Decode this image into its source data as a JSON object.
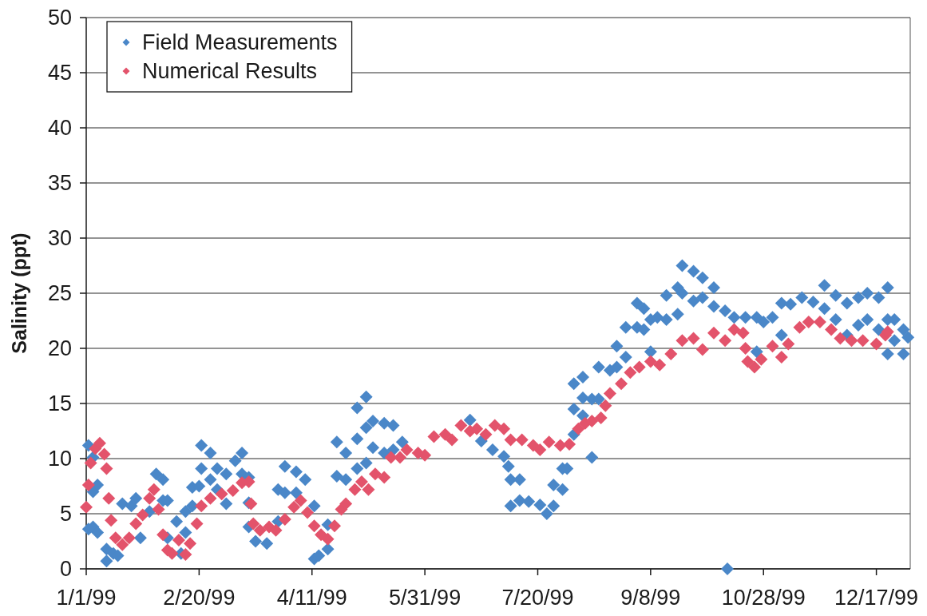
{
  "chart_data": {
    "type": "scatter",
    "ylabel": "Salinity (ppt)",
    "xlim": [
      "1999-01-01",
      "2000-01-01"
    ],
    "xticks": [
      {
        "value": "1999-01-01",
        "label": "1/1/99"
      },
      {
        "value": "1999-02-20",
        "label": "2/20/99"
      },
      {
        "value": "1999-04-11",
        "label": "4/11/99"
      },
      {
        "value": "1999-05-31",
        "label": "5/31/99"
      },
      {
        "value": "1999-07-20",
        "label": "7/20/99"
      },
      {
        "value": "1999-09-08",
        "label": "9/8/99"
      },
      {
        "value": "1999-10-28",
        "label": "10/28/99"
      },
      {
        "value": "1999-12-17",
        "label": "12/17/99"
      }
    ],
    "ylim": [
      0,
      50
    ],
    "yticks": [
      0,
      5,
      10,
      15,
      20,
      25,
      30,
      35,
      40,
      45,
      50
    ],
    "grid": "y",
    "legend": "top left",
    "marker": "diamond",
    "series": [
      {
        "name": "Field Measurements",
        "color": "#4a87c8",
        "x": [
          "1999-01-02",
          "1999-01-02",
          "1999-01-04",
          "1999-01-04",
          "1999-01-04",
          "1999-01-06",
          "1999-01-06",
          "1999-01-10",
          "1999-01-10",
          "1999-01-13",
          "1999-01-15",
          "1999-01-17",
          "1999-01-21",
          "1999-01-23",
          "1999-01-25",
          "1999-01-29",
          "1999-02-01",
          "1999-02-04",
          "1999-02-04",
          "1999-02-06",
          "1999-02-06",
          "1999-02-10",
          "1999-02-12",
          "1999-02-14",
          "1999-02-14",
          "1999-02-17",
          "1999-02-17",
          "1999-02-20",
          "1999-02-21",
          "1999-02-21",
          "1999-02-25",
          "1999-02-25",
          "1999-02-28",
          "1999-02-28",
          "1999-03-04",
          "1999-03-04",
          "1999-03-08",
          "1999-03-11",
          "1999-03-11",
          "1999-03-14",
          "1999-03-14",
          "1999-03-14",
          "1999-03-17",
          "1999-03-22",
          "1999-03-27",
          "1999-03-27",
          "1999-03-30",
          "1999-03-30",
          "1999-04-04",
          "1999-04-04",
          "1999-04-08",
          "1999-04-12",
          "1999-04-12",
          "1999-04-14",
          "1999-04-18",
          "1999-04-18",
          "1999-04-22",
          "1999-04-22",
          "1999-04-26",
          "1999-04-26",
          "1999-05-01",
          "1999-05-01",
          "1999-05-01",
          "1999-05-05",
          "1999-05-05",
          "1999-05-05",
          "1999-05-08",
          "1999-05-08",
          "1999-05-13",
          "1999-05-13",
          "1999-05-17",
          "1999-05-17",
          "1999-05-21",
          "1999-06-20",
          "1999-06-25",
          "1999-06-30",
          "1999-07-05",
          "1999-07-07",
          "1999-07-08",
          "1999-07-08",
          "1999-07-12",
          "1999-07-12",
          "1999-07-16",
          "1999-07-21",
          "1999-07-24",
          "1999-07-27",
          "1999-07-27",
          "1999-07-31",
          "1999-07-31",
          "1999-08-02",
          "1999-08-05",
          "1999-08-05",
          "1999-08-05",
          "1999-08-09",
          "1999-08-09",
          "1999-08-09",
          "1999-08-13",
          "1999-08-13",
          "1999-08-16",
          "1999-08-16",
          "1999-08-21",
          "1999-08-24",
          "1999-08-24",
          "1999-08-28",
          "1999-08-28",
          "1999-09-02",
          "1999-09-02",
          "1999-09-05",
          "1999-09-05",
          "1999-09-08",
          "1999-09-08",
          "1999-09-11",
          "1999-09-15",
          "1999-09-15",
          "1999-09-20",
          "1999-09-20",
          "1999-09-22",
          "1999-09-22",
          "1999-09-27",
          "1999-09-27",
          "1999-10-01",
          "1999-10-01",
          "1999-10-06",
          "1999-10-06",
          "1999-10-11",
          "1999-10-12",
          "1999-10-15",
          "1999-10-20",
          "1999-10-25",
          "1999-10-25",
          "1999-10-28",
          "1999-11-01",
          "1999-11-05",
          "1999-11-05",
          "1999-11-09",
          "1999-11-14",
          "1999-11-19",
          "1999-11-24",
          "1999-11-24",
          "1999-11-29",
          "1999-11-29",
          "1999-12-04",
          "1999-12-04",
          "1999-12-09",
          "1999-12-09",
          "1999-12-13",
          "1999-12-13",
          "1999-12-18",
          "1999-12-18",
          "1999-12-22",
          "1999-12-22",
          "1999-12-22",
          "1999-12-25",
          "1999-12-25",
          "1999-12-29",
          "1999-12-29",
          "1999-12-31"
        ],
        "values": [
          11.2,
          3.6,
          10.1,
          7.0,
          3.8,
          7.6,
          3.3,
          1.8,
          0.7,
          1.4,
          1.2,
          5.9,
          5.7,
          6.4,
          2.8,
          5.2,
          8.6,
          8.1,
          6.2,
          6.2,
          2.8,
          4.3,
          1.4,
          5.2,
          3.3,
          7.4,
          5.7,
          7.5,
          11.2,
          9.1,
          10.5,
          8.1,
          9.1,
          7.2,
          8.6,
          5.9,
          9.8,
          10.5,
          8.6,
          8.3,
          6.0,
          3.8,
          2.5,
          2.3,
          7.2,
          4.3,
          9.3,
          6.9,
          8.8,
          6.9,
          8.1,
          5.7,
          0.9,
          1.2,
          4.0,
          1.8,
          11.5,
          8.4,
          10.5,
          8.1,
          14.6,
          11.8,
          9.1,
          15.6,
          12.8,
          9.6,
          13.4,
          11.0,
          13.2,
          10.5,
          13.0,
          10.8,
          11.5,
          13.5,
          11.6,
          10.8,
          10.2,
          9.3,
          8.1,
          5.7,
          8.1,
          6.2,
          6.1,
          5.8,
          5.0,
          7.6,
          5.7,
          9.1,
          7.2,
          9.1,
          16.8,
          14.5,
          12.2,
          17.4,
          15.5,
          13.9,
          15.4,
          10.1,
          18.3,
          15.4,
          18.0,
          20.2,
          18.3,
          21.9,
          19.2,
          24.1,
          21.9,
          23.6,
          21.7,
          22.6,
          19.7,
          22.8,
          24.8,
          22.6,
          25.5,
          23.1,
          27.5,
          25.0,
          27.0,
          24.3,
          26.4,
          24.6,
          25.5,
          23.8,
          23.4,
          0,
          22.8,
          22.8,
          22.8,
          19.7,
          22.4,
          22.8,
          24.1,
          21.2,
          24.0,
          24.6,
          24.2,
          25.7,
          23.6,
          24.8,
          22.6,
          24.1,
          21.2,
          24.6,
          22.1,
          25.0,
          22.6,
          24.6,
          21.7,
          25.5,
          22.6,
          19.5,
          22.6,
          20.7,
          21.7,
          19.5,
          21.0
        ]
      },
      {
        "name": "Numerical Results",
        "color": "#e3536b",
        "x": [
          "1999-01-01",
          "1999-01-02",
          "1999-01-03",
          "1999-01-05",
          "1999-01-07",
          "1999-01-09",
          "1999-01-10",
          "1999-01-11",
          "1999-01-12",
          "1999-01-14",
          "1999-01-17",
          "1999-01-20",
          "1999-01-23",
          "1999-01-26",
          "1999-01-29",
          "1999-01-31",
          "1999-02-02",
          "1999-02-04",
          "1999-02-06",
          "1999-02-08",
          "1999-02-11",
          "1999-02-14",
          "1999-02-16",
          "1999-02-19",
          "1999-02-21",
          "1999-02-25",
          "1999-03-02",
          "1999-03-07",
          "1999-03-11",
          "1999-03-14",
          "1999-03-15",
          "1999-03-16",
          "1999-03-19",
          "1999-03-23",
          "1999-03-26",
          "1999-03-30",
          "1999-04-03",
          "1999-04-06",
          "1999-04-09",
          "1999-04-12",
          "1999-04-15",
          "1999-04-18",
          "1999-04-21",
          "1999-04-24",
          "1999-04-26",
          "1999-04-30",
          "1999-05-03",
          "1999-05-06",
          "1999-05-09",
          "1999-05-13",
          "1999-05-16",
          "1999-05-20",
          "1999-05-23",
          "1999-05-28",
          "1999-05-31",
          "1999-06-04",
          "1999-06-09",
          "1999-06-12",
          "1999-06-16",
          "1999-06-20",
          "1999-06-23",
          "1999-06-27",
          "1999-07-01",
          "1999-07-05",
          "1999-07-08",
          "1999-07-13",
          "1999-07-18",
          "1999-07-21",
          "1999-07-25",
          "1999-07-30",
          "1999-08-03",
          "1999-08-07",
          "1999-08-10",
          "1999-08-13",
          "1999-08-17",
          "1999-08-19",
          "1999-08-21",
          "1999-08-26",
          "1999-08-30",
          "1999-09-03",
          "1999-09-08",
          "1999-09-12",
          "1999-09-17",
          "1999-09-22",
          "1999-09-27",
          "1999-10-01",
          "1999-10-06",
          "1999-10-11",
          "1999-10-15",
          "1999-10-19",
          "1999-10-20",
          "1999-10-21",
          "1999-10-24",
          "1999-10-27",
          "1999-11-01",
          "1999-11-05",
          "1999-11-08",
          "1999-11-13",
          "1999-11-17",
          "1999-11-22",
          "1999-11-27",
          "1999-12-01",
          "1999-12-06",
          "1999-12-11",
          "1999-12-17",
          "1999-12-21",
          "1999-12-22"
        ],
        "values": [
          5.6,
          7.6,
          9.6,
          10.9,
          11.4,
          10.4,
          9.1,
          6.4,
          4.4,
          2.8,
          2.2,
          2.8,
          4.1,
          4.9,
          6.4,
          7.2,
          5.4,
          3.1,
          1.7,
          1.4,
          2.6,
          1.3,
          2.3,
          4.1,
          5.7,
          6.4,
          6.8,
          7.1,
          7.8,
          7.9,
          5.9,
          4.1,
          3.5,
          3.8,
          3.5,
          4.5,
          5.6,
          6.2,
          5.1,
          3.9,
          3.1,
          2.7,
          3.9,
          5.4,
          5.9,
          7.2,
          7.9,
          7.2,
          8.6,
          8.3,
          10.1,
          10.1,
          10.8,
          10.5,
          10.3,
          12.0,
          12.2,
          11.7,
          13.0,
          12.5,
          12.7,
          12.2,
          13.0,
          12.7,
          11.7,
          11.7,
          11.2,
          10.8,
          11.5,
          11.2,
          11.3,
          12.7,
          13.2,
          13.4,
          13.7,
          14.8,
          15.9,
          16.8,
          17.8,
          18.3,
          18.8,
          18.5,
          19.5,
          20.7,
          20.9,
          19.9,
          21.4,
          20.7,
          21.7,
          21.4,
          20.0,
          18.8,
          18.3,
          19.0,
          20.2,
          19.2,
          20.4,
          21.9,
          22.4,
          22.4,
          21.7,
          20.9,
          20.7,
          20.7,
          20.4,
          21.2,
          21.5
        ]
      }
    ]
  }
}
